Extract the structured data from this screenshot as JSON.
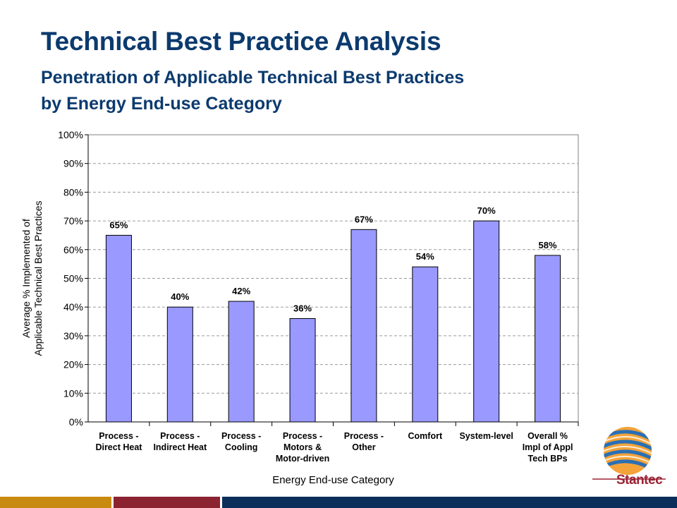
{
  "slide": {
    "title": "Technical Best Practice Analysis",
    "subtitle_line1": "Penetration of Applicable Technical Best Practices",
    "subtitle_line2": "by Energy End-use Category"
  },
  "logo": {
    "name": "Stantec",
    "icon": "stantec-globe-logo"
  },
  "colors": {
    "title": "#0b3a6e",
    "bar_fill": "#9999ff",
    "footer": [
      "#c98a12",
      "#8b2330",
      "#0b2e5a"
    ]
  },
  "chart_data": {
    "type": "bar",
    "categories": [
      [
        "Process -",
        "Direct Heat"
      ],
      [
        "Process -",
        "Indirect Heat"
      ],
      [
        "Process -",
        "Cooling"
      ],
      [
        "Process -",
        "Motors &",
        "Motor-driven"
      ],
      [
        "Process -",
        "Other"
      ],
      [
        "Comfort"
      ],
      [
        "System-level"
      ],
      [
        "Overall %",
        "Impl of Appl",
        "Tech BPs"
      ]
    ],
    "values": [
      65,
      40,
      42,
      36,
      67,
      54,
      70,
      58
    ],
    "data_labels": [
      "65%",
      "40%",
      "42%",
      "36%",
      "67%",
      "54%",
      "70%",
      "58%"
    ],
    "xlabel": "Energy End-use Category",
    "ylabel": [
      "Average % Implemented of",
      "Applicable Technical Best Practices"
    ],
    "ylim": [
      0,
      100
    ],
    "y_ticks": [
      "0%",
      "10%",
      "20%",
      "30%",
      "40%",
      "50%",
      "60%",
      "70%",
      "80%",
      "90%",
      "100%"
    ],
    "grid": true,
    "grid_style": "dashed horizontal",
    "legend": "none"
  }
}
